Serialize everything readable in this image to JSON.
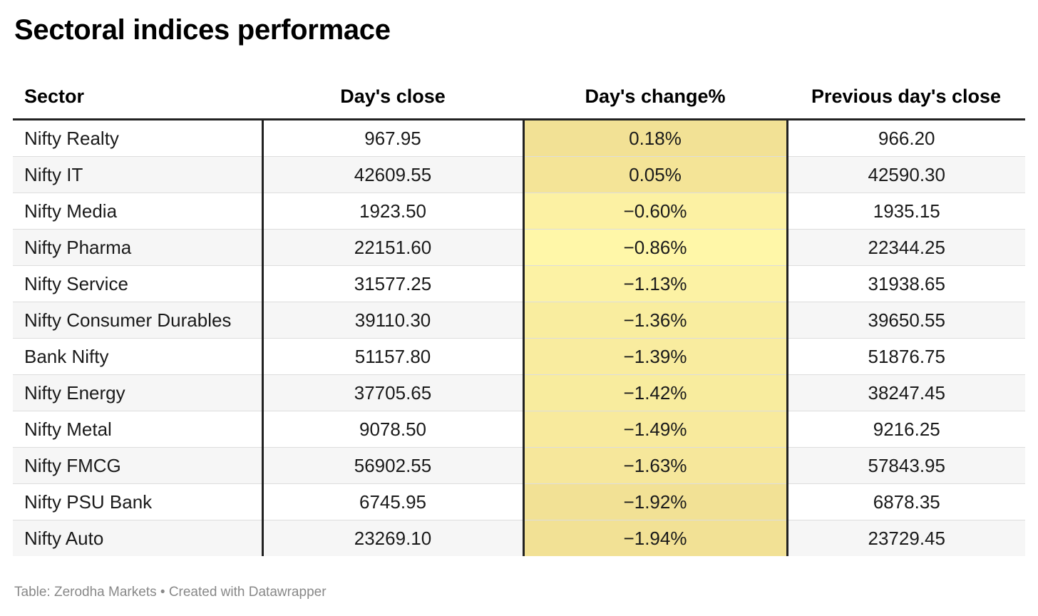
{
  "title": "Sectoral indices performace",
  "footer": {
    "source": "Table: Zerodha Markets",
    "separator": "•",
    "credit": "Created with Datawrapper"
  },
  "colors": {
    "heat_low": "#f2e195",
    "heat_high": "#fff7a8",
    "divider": "#222222",
    "alt_row": "#f6f6f6"
  },
  "chart_data": {
    "type": "table",
    "columns": [
      "Sector",
      "Day's close",
      "Day's change%",
      "Previous day's close"
    ],
    "rows": [
      {
        "sector": "Nifty Realty",
        "close": "967.95",
        "change": "0.18%",
        "prev": "966.20",
        "change_value": 0.18
      },
      {
        "sector": "Nifty IT",
        "close": "42609.55",
        "change": "0.05%",
        "prev": "42590.30",
        "change_value": 0.05
      },
      {
        "sector": "Nifty Media",
        "close": "1923.50",
        "change": "−0.60%",
        "prev": "1935.15",
        "change_value": -0.6
      },
      {
        "sector": "Nifty Pharma",
        "close": "22151.60",
        "change": "−0.86%",
        "prev": "22344.25",
        "change_value": -0.86
      },
      {
        "sector": "Nifty Service",
        "close": "31577.25",
        "change": "−1.13%",
        "prev": "31938.65",
        "change_value": -1.13
      },
      {
        "sector": "Nifty Consumer Durables",
        "close": "39110.30",
        "change": "−1.36%",
        "prev": "39650.55",
        "change_value": -1.36
      },
      {
        "sector": "Bank Nifty",
        "close": "51157.80",
        "change": "−1.39%",
        "prev": "51876.75",
        "change_value": -1.39
      },
      {
        "sector": "Nifty Energy",
        "close": "37705.65",
        "change": "−1.42%",
        "prev": "38247.45",
        "change_value": -1.42
      },
      {
        "sector": "Nifty Metal",
        "close": "9078.50",
        "change": "−1.49%",
        "prev": "9216.25",
        "change_value": -1.49
      },
      {
        "sector": "Nifty FMCG",
        "close": "56902.55",
        "change": "−1.63%",
        "prev": "57843.95",
        "change_value": -1.63
      },
      {
        "sector": "Nifty PSU Bank",
        "close": "6745.95",
        "change": "−1.92%",
        "prev": "6878.35",
        "change_value": -1.92
      },
      {
        "sector": "Nifty Auto",
        "close": "23269.10",
        "change": "−1.94%",
        "prev": "23729.45",
        "change_value": -1.94
      }
    ]
  }
}
